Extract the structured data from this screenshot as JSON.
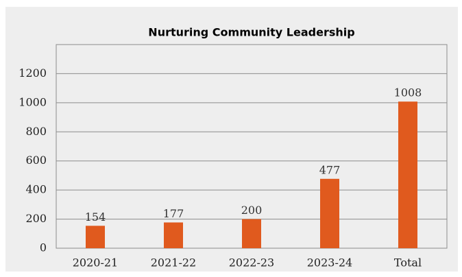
{
  "chart_data": {
    "type": "bar",
    "title": "Nurturing Community Leadership",
    "categories": [
      "2020-21",
      "2021-22",
      "2022-23",
      "2023-24",
      "Total"
    ],
    "values": [
      154,
      177,
      200,
      477,
      1008
    ],
    "color": "#e05a1e",
    "ylim": [
      0,
      1400
    ],
    "yticks": [
      0,
      200,
      400,
      600,
      800,
      1000,
      1200
    ],
    "grid": true
  }
}
